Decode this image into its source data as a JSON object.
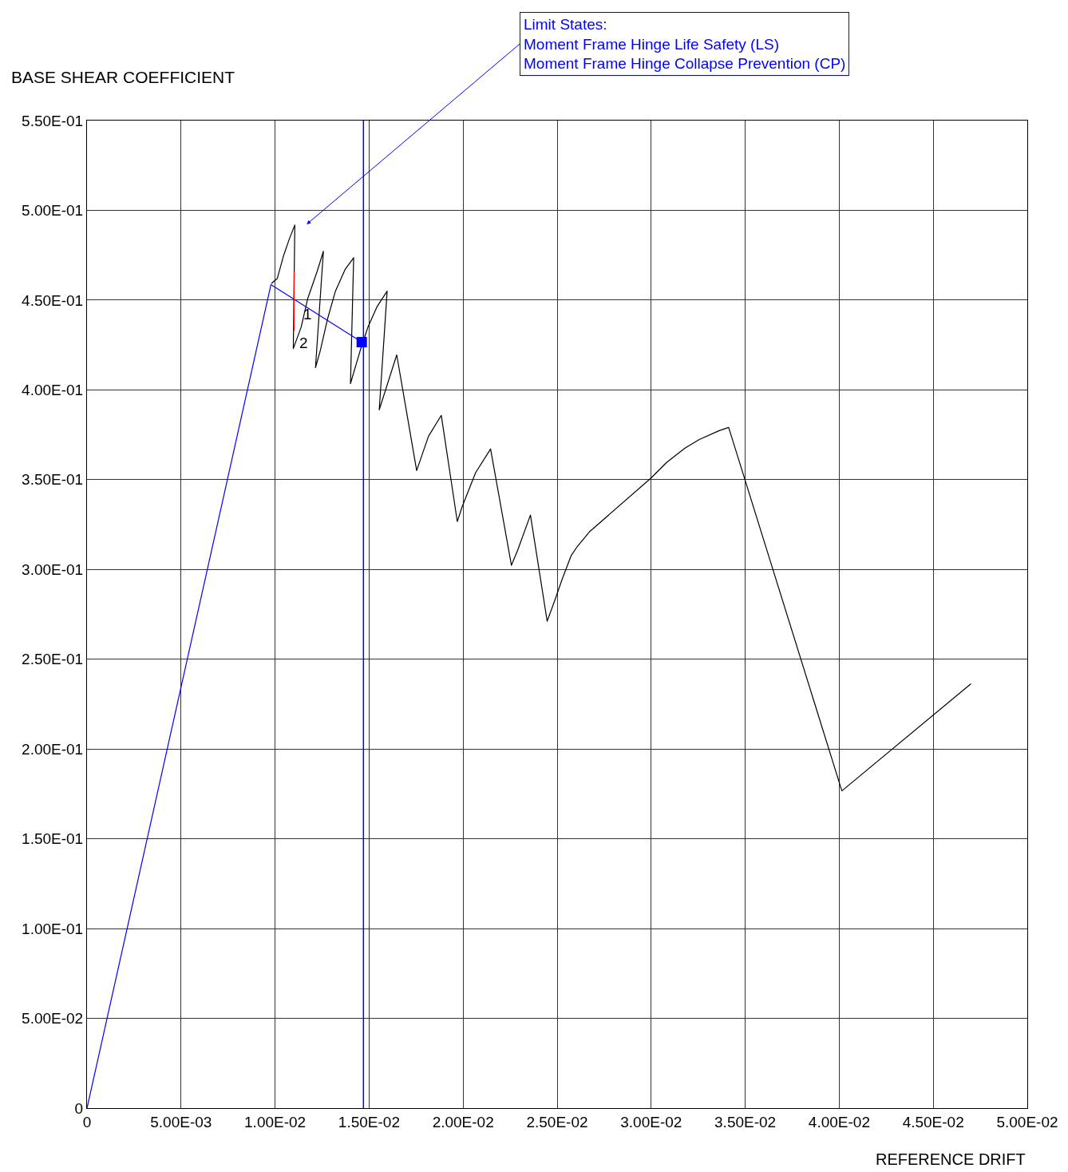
{
  "chart_data": {
    "type": "line",
    "xlabel": "REFERENCE DRIFT",
    "ylabel": "BASE SHEAR COEFFICIENT",
    "xlim": [
      0,
      0.05
    ],
    "ylim": [
      0,
      0.55
    ],
    "xticks": [
      0,
      {
        "value": 0.005,
        "label": "5.00E-03"
      },
      {
        "value": 0.01,
        "label": "1.00E-02"
      },
      {
        "value": 0.015,
        "label": "1.50E-02"
      },
      {
        "value": 0.02,
        "label": "2.00E-02"
      },
      {
        "value": 0.025,
        "label": "2.50E-02"
      },
      {
        "value": 0.03,
        "label": "3.00E-02"
      },
      {
        "value": 0.035,
        "label": "3.50E-02"
      },
      {
        "value": 0.04,
        "label": "4.00E-02"
      },
      {
        "value": 0.045,
        "label": "4.50E-02"
      },
      {
        "value": 0.05,
        "label": "5.00E-02"
      }
    ],
    "yticks": [
      0,
      {
        "value": 0.05,
        "label": "5.00E-02"
      },
      {
        "value": 0.1,
        "label": "1.00E-01"
      },
      {
        "value": 0.15,
        "label": "1.50E-01"
      },
      {
        "value": 0.2,
        "label": "2.00E-01"
      },
      {
        "value": 0.25,
        "label": "2.50E-01"
      },
      {
        "value": 0.3,
        "label": "3.00E-01"
      },
      {
        "value": 0.35,
        "label": "3.50E-01"
      },
      {
        "value": 0.4,
        "label": "4.00E-01"
      },
      {
        "value": 0.45,
        "label": "4.50E-01"
      },
      {
        "value": 0.5,
        "label": "5.00E-01"
      },
      {
        "value": 0.55,
        "label": "5.50E-01"
      }
    ],
    "grid": true,
    "series": [
      {
        "color": "#000000",
        "x": [
          0.00982,
          0.01012,
          0.01046,
          0.01075,
          0.01105,
          0.01097,
          0.01139,
          0.01173,
          0.01224,
          0.01257,
          0.01215,
          0.0124,
          0.01279,
          0.01321,
          0.01372,
          0.01418,
          0.01401,
          0.01452,
          0.01494,
          0.01541,
          0.01596,
          0.01554,
          0.01647,
          0.01753,
          0.01816,
          0.01884,
          0.01969,
          0.01994,
          0.02066,
          0.02146,
          0.02257,
          0.0229,
          0.02358,
          0.02447,
          0.02489,
          0.02527,
          0.02574,
          0.02608,
          0.02671,
          0.02997,
          0.03082,
          0.0318,
          0.03256,
          0.03362,
          0.03412,
          0.04014,
          0.04699
        ],
        "values": [
          0.4594,
          0.4621,
          0.475,
          0.4838,
          0.4918,
          0.423,
          0.435,
          0.4506,
          0.4661,
          0.4772,
          0.4124,
          0.4217,
          0.4395,
          0.455,
          0.467,
          0.4736,
          0.4035,
          0.4217,
          0.435,
          0.4461,
          0.455,
          0.3889,
          0.4195,
          0.3551,
          0.3742,
          0.3858,
          0.3267,
          0.3347,
          0.3538,
          0.3671,
          0.3023,
          0.3107,
          0.3303,
          0.2712,
          0.2832,
          0.2947,
          0.3076,
          0.3129,
          0.3209,
          0.3507,
          0.3596,
          0.3676,
          0.3724,
          0.3773,
          0.3791,
          0.1767,
          0.2362
        ]
      },
      {
        "color": "#0000ff",
        "x": [
          0,
          0.00978,
          0.01461
        ],
        "values": [
          0,
          0.4586,
          0.4266
        ]
      },
      {
        "color": "#ff0000",
        "x": [
          0.01101,
          0.01101
        ],
        "values": [
          0.4657,
          0.4332
        ]
      },
      {
        "type": "scatter",
        "color": "#0000ff",
        "marker": "square",
        "x": [
          0.01461
        ],
        "values": [
          0.4266
        ]
      }
    ],
    "ref_lines": [
      {
        "axis": "x",
        "value": 0.0147,
        "color": "#0000ff"
      }
    ],
    "annotations": [
      "Limit States:\nMoment Frame Hinge Life Safety (LS)\nMoment Frame Hinge Collapse Prevention (CP)",
      {
        "text": "1",
        "x": 0.0114,
        "y": 0.442
      },
      {
        "text": "2",
        "x": 0.0112,
        "y": 0.426
      }
    ]
  }
}
